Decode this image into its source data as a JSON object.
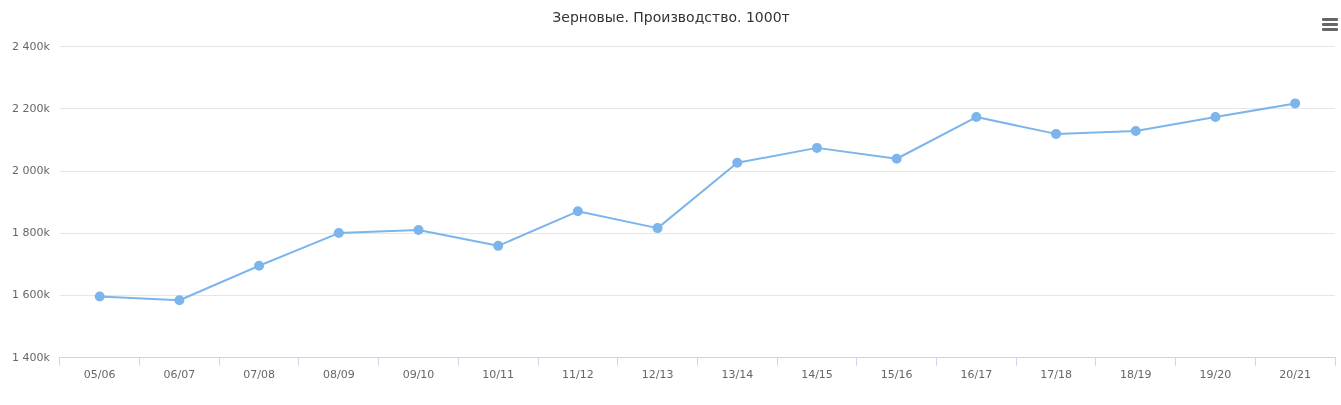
{
  "chart_data": {
    "type": "line",
    "title": "Зерновые. Производство. 1000т",
    "categories": [
      "05/06",
      "06/07",
      "07/08",
      "08/09",
      "09/10",
      "10/11",
      "11/12",
      "12/13",
      "13/14",
      "14/15",
      "15/16",
      "16/17",
      "17/18",
      "18/19",
      "19/20",
      "20/21"
    ],
    "series": [
      {
        "color": "#7cb5ec",
        "values": [
          1597,
          1585,
          1696,
          1801,
          1811,
          1760,
          1871,
          1817,
          2027,
          2075,
          2040,
          2174,
          2120,
          2129,
          2174,
          2218
        ]
      }
    ],
    "ylim": [
      1400,
      2400
    ],
    "yticks": [
      {
        "value": 1400,
        "label": "1 400k"
      },
      {
        "value": 1600,
        "label": "1 600k"
      },
      {
        "value": 1800,
        "label": "1 800k"
      },
      {
        "value": 2000,
        "label": "2 000k"
      },
      {
        "value": 2200,
        "label": "2 200k"
      },
      {
        "value": 2400,
        "label": "2 400k"
      }
    ],
    "grid": "y",
    "legend": false,
    "marker": "circle",
    "line_style": "solid"
  }
}
